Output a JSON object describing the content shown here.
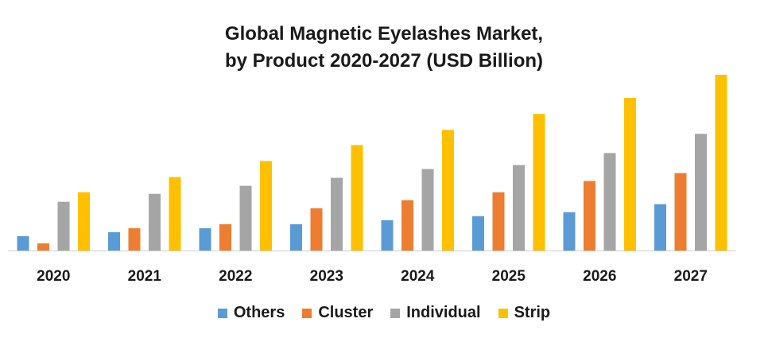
{
  "chart_data": {
    "type": "bar",
    "title": [
      "Global Magnetic Eyelashes Market,",
      "by Product 2020-2027 (USD Billion)"
    ],
    "categories": [
      "2020",
      "2021",
      "2022",
      "2023",
      "2024",
      "2025",
      "2026",
      "2027"
    ],
    "series": [
      {
        "name": "Others",
        "color": "#5b9bd5",
        "values": [
          0.18,
          0.23,
          0.28,
          0.33,
          0.38,
          0.43,
          0.48,
          0.58
        ]
      },
      {
        "name": "Cluster",
        "color": "#ed7d31",
        "values": [
          0.09,
          0.28,
          0.33,
          0.53,
          0.63,
          0.73,
          0.87,
          0.97
        ]
      },
      {
        "name": "Individual",
        "color": "#a5a5a5",
        "values": [
          0.61,
          0.71,
          0.81,
          0.91,
          1.02,
          1.07,
          1.22,
          1.46
        ]
      },
      {
        "name": "Strip",
        "color": "#ffc000",
        "values": [
          0.73,
          0.92,
          1.12,
          1.32,
          1.51,
          1.71,
          1.91,
          2.2
        ]
      }
    ],
    "xlabel": "",
    "ylabel": "",
    "ylim": [
      0,
      2.2
    ],
    "grid": false,
    "legend_position": "bottom"
  }
}
